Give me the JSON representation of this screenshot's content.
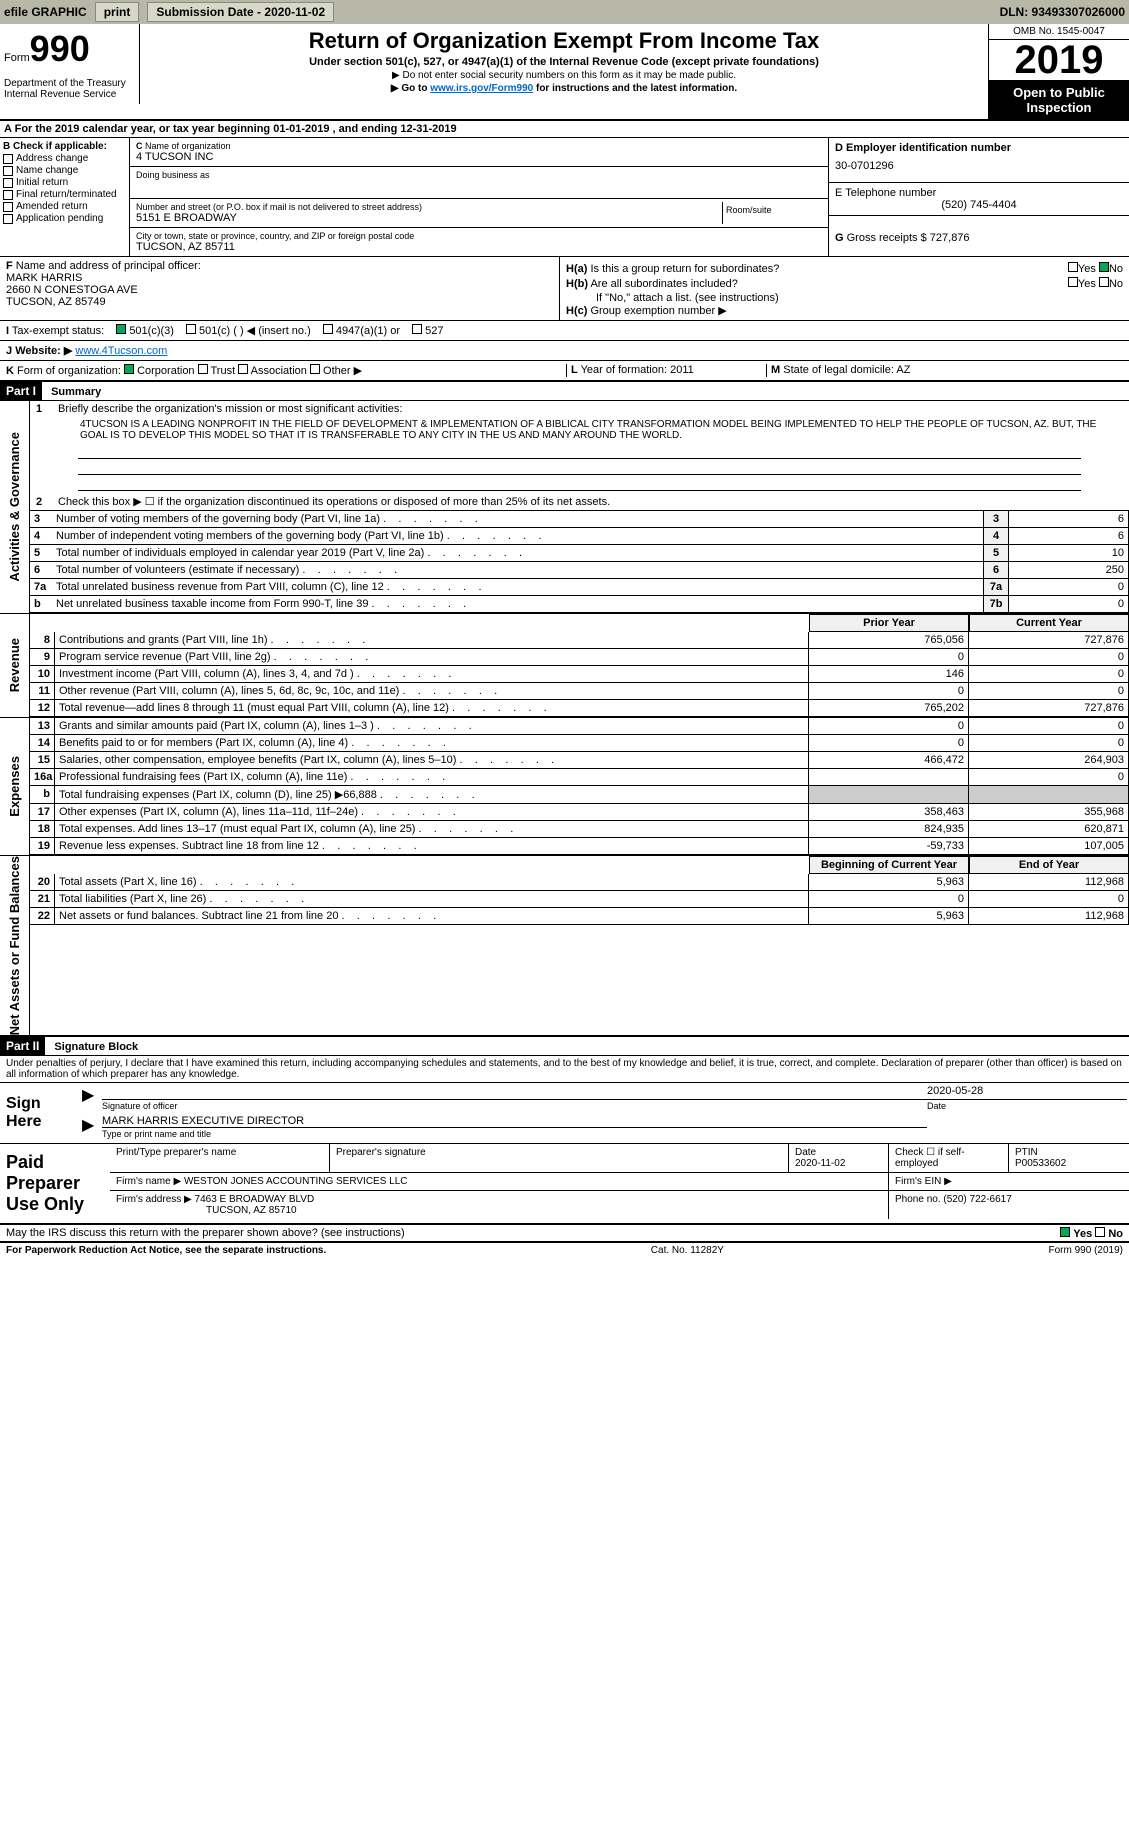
{
  "topbar": {
    "efile": "efile GRAPHIC",
    "print": "print",
    "sub_label": "Submission Date - ",
    "sub_date": "2020-11-02",
    "dln": "DLN: 93493307026000"
  },
  "header": {
    "form_label": "Form",
    "form_num": "990",
    "dept1": "Department of the Treasury",
    "dept2": "Internal Revenue Service",
    "title": "Return of Organization Exempt From Income Tax",
    "sub1": "Under section 501(c), 527, or 4947(a)(1) of the Internal Revenue Code (except private foundations)",
    "sub2": "▶ Do not enter social security numbers on this form as it may be made public.",
    "sub3a": "▶ Go to ",
    "sub3_link": "www.irs.gov/Form990",
    "sub3b": " for instructions and the latest information.",
    "omb": "OMB No. 1545-0047",
    "year": "2019",
    "open": "Open to Public Inspection"
  },
  "A": {
    "text": "For the 2019 calendar year, or tax year beginning ",
    "begin": "01-01-2019",
    "mid": " , and ending ",
    "end": "12-31-2019"
  },
  "B": {
    "label": "Check if applicable:",
    "items": [
      "Address change",
      "Name change",
      "Initial return",
      "Final return/terminated",
      "Amended return",
      "Application pending"
    ]
  },
  "C": {
    "name_label": "Name of organization",
    "name": "4 TUCSON INC",
    "dba_label": "Doing business as",
    "addr_label": "Number and street (or P.O. box if mail is not delivered to street address)",
    "addr": "5151 E BROADWAY",
    "room_label": "Room/suite",
    "city_label": "City or town, state or province, country, and ZIP or foreign postal code",
    "city": "TUCSON, AZ  85711"
  },
  "D": {
    "label": "Employer identification number",
    "val": "30-0701296"
  },
  "E": {
    "label": "Telephone number",
    "val": "(520) 745-4404"
  },
  "G": {
    "label": "Gross receipts $",
    "val": "727,876"
  },
  "F": {
    "label": "Name and address of principal officer:",
    "name": "MARK HARRIS",
    "addr1": "2660 N CONESTOGA AVE",
    "addr2": "TUCSON, AZ  85749"
  },
  "H": {
    "a": "Is this a group return for subordinates?",
    "b": "Are all subordinates included?",
    "b_note": "If \"No,\" attach a list. (see instructions)",
    "c": "Group exemption number ▶",
    "yes": "Yes",
    "no": "No"
  },
  "I": {
    "label": "Tax-exempt status:",
    "opt1": "501(c)(3)",
    "opt2": "501(c) (  ) ◀ (insert no.)",
    "opt3": "4947(a)(1) or",
    "opt4": "527"
  },
  "J": {
    "label": "Website: ▶",
    "val": "www.4Tucson.com"
  },
  "K": {
    "label": "Form of organization:",
    "opt1": "Corporation",
    "opt2": "Trust",
    "opt3": "Association",
    "opt4": "Other ▶"
  },
  "L": {
    "label": "Year of formation:",
    "val": "2011"
  },
  "M": {
    "label": "State of legal domicile:",
    "val": "AZ"
  },
  "part1": {
    "hdr": "Part I",
    "title": "Summary"
  },
  "p1": {
    "l1": "Briefly describe the organization's mission or most significant activities:",
    "mission": "4TUCSON IS A LEADING NONPROFIT IN THE FIELD OF DEVELOPMENT & IMPLEMENTATION OF A BIBLICAL CITY TRANSFORMATION MODEL BEING IMPLEMENTED TO HELP THE PEOPLE OF TUCSON, AZ. BUT, THE GOAL IS TO DEVELOP THIS MODEL SO THAT IT IS TRANSFERABLE TO ANY CITY IN THE US AND MANY AROUND THE WORLD.",
    "l2": "Check this box ▶ ☐  if the organization discontinued its operations or disposed of more than 25% of its net assets.",
    "rows": [
      {
        "n": "3",
        "t": "Number of voting members of the governing body (Part VI, line 1a)",
        "ln": "3",
        "v": "6"
      },
      {
        "n": "4",
        "t": "Number of independent voting members of the governing body (Part VI, line 1b)",
        "ln": "4",
        "v": "6"
      },
      {
        "n": "5",
        "t": "Total number of individuals employed in calendar year 2019 (Part V, line 2a)",
        "ln": "5",
        "v": "10"
      },
      {
        "n": "6",
        "t": "Total number of volunteers (estimate if necessary)",
        "ln": "6",
        "v": "250"
      },
      {
        "n": "7a",
        "t": "Total unrelated business revenue from Part VIII, column (C), line 12",
        "ln": "7a",
        "v": "0"
      },
      {
        "n": "b",
        "t": "Net unrelated business taxable income from Form 990-T, line 39",
        "ln": "7b",
        "v": "0"
      }
    ]
  },
  "fin": {
    "prior": "Prior Year",
    "current": "Current Year",
    "begin": "Beginning of Current Year",
    "end": "End of Year",
    "sections": {
      "rev": {
        "label": "Revenue",
        "rows": [
          {
            "n": "8",
            "t": "Contributions and grants (Part VIII, line 1h)",
            "p": "765,056",
            "c": "727,876"
          },
          {
            "n": "9",
            "t": "Program service revenue (Part VIII, line 2g)",
            "p": "0",
            "c": "0"
          },
          {
            "n": "10",
            "t": "Investment income (Part VIII, column (A), lines 3, 4, and 7d )",
            "p": "146",
            "c": "0"
          },
          {
            "n": "11",
            "t": "Other revenue (Part VIII, column (A), lines 5, 6d, 8c, 9c, 10c, and 11e)",
            "p": "0",
            "c": "0"
          },
          {
            "n": "12",
            "t": "Total revenue—add lines 8 through 11 (must equal Part VIII, column (A), line 12)",
            "p": "765,202",
            "c": "727,876"
          }
        ]
      },
      "exp": {
        "label": "Expenses",
        "rows": [
          {
            "n": "13",
            "t": "Grants and similar amounts paid (Part IX, column (A), lines 1–3 )",
            "p": "0",
            "c": "0"
          },
          {
            "n": "14",
            "t": "Benefits paid to or for members (Part IX, column (A), line 4)",
            "p": "0",
            "c": "0"
          },
          {
            "n": "15",
            "t": "Salaries, other compensation, employee benefits (Part IX, column (A), lines 5–10)",
            "p": "466,472",
            "c": "264,903"
          },
          {
            "n": "16a",
            "t": "Professional fundraising fees (Part IX, column (A), line 11e)",
            "p": "",
            "c": "0"
          },
          {
            "n": "b",
            "t": "Total fundraising expenses (Part IX, column (D), line 25) ▶66,888",
            "p": "",
            "c": "",
            "shaded": true
          },
          {
            "n": "17",
            "t": "Other expenses (Part IX, column (A), lines 11a–11d, 11f–24e)",
            "p": "358,463",
            "c": "355,968"
          },
          {
            "n": "18",
            "t": "Total expenses. Add lines 13–17 (must equal Part IX, column (A), line 25)",
            "p": "824,935",
            "c": "620,871"
          },
          {
            "n": "19",
            "t": "Revenue less expenses. Subtract line 18 from line 12",
            "p": "-59,733",
            "c": "107,005"
          }
        ]
      },
      "net": {
        "label": "Net Assets or Fund Balances",
        "rows": [
          {
            "n": "20",
            "t": "Total assets (Part X, line 16)",
            "p": "5,963",
            "c": "112,968"
          },
          {
            "n": "21",
            "t": "Total liabilities (Part X, line 26)",
            "p": "0",
            "c": "0"
          },
          {
            "n": "22",
            "t": "Net assets or fund balances. Subtract line 21 from line 20",
            "p": "5,963",
            "c": "112,968"
          }
        ]
      }
    }
  },
  "part2": {
    "hdr": "Part II",
    "title": "Signature Block"
  },
  "sig": {
    "declare": "Under penalties of perjury, I declare that I have examined this return, including accompanying schedules and statements, and to the best of my knowledge and belief, it is true, correct, and complete. Declaration of preparer (other than officer) is based on all information of which preparer has any knowledge.",
    "sign_here": "Sign Here",
    "sig_officer": "Signature of officer",
    "date_label": "Date",
    "sig_date": "2020-05-28",
    "name_title": "MARK HARRIS  EXECUTIVE DIRECTOR",
    "type_label": "Type or print name and title"
  },
  "paid": {
    "label": "Paid Preparer Use Only",
    "h1": "Print/Type preparer's name",
    "h2": "Preparer's signature",
    "h3": "Date",
    "h3v": "2020-11-02",
    "h4": "Check ☐ if self-employed",
    "h5": "PTIN",
    "h5v": "P00533602",
    "firm_name_l": "Firm's name    ▶",
    "firm_name": "WESTON JONES ACCOUNTING SERVICES LLC",
    "firm_ein_l": "Firm's EIN ▶",
    "firm_addr_l": "Firm's address ▶",
    "firm_addr1": "7463 E BROADWAY BLVD",
    "firm_addr2": "TUCSON, AZ  85710",
    "phone_l": "Phone no.",
    "phone": "(520) 722-6617"
  },
  "footer": {
    "discuss": "May the IRS discuss this return with the preparer shown above? (see instructions)",
    "yes": "Yes",
    "no": "No",
    "pra": "For Paperwork Reduction Act Notice, see the separate instructions.",
    "cat": "Cat. No. 11282Y",
    "form": "Form 990 (2019)"
  }
}
